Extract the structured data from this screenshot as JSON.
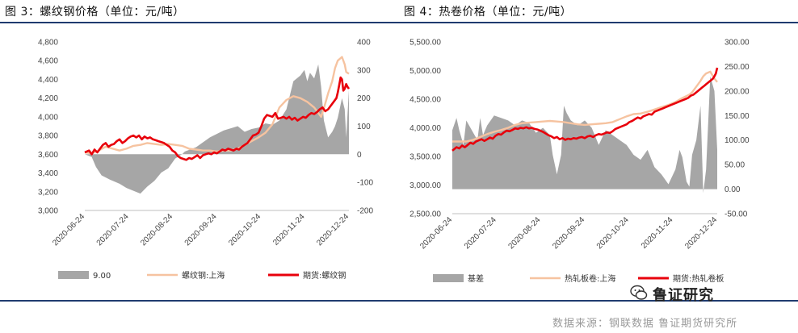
{
  "titles": {
    "left": "图 3：螺纹钢价格（单位：元/吨）",
    "right": "图 4：热卷价格（单位：元/吨）"
  },
  "source": "数据来源：钢联数据 鲁证期货研究所",
  "logo_text": "鲁证研究",
  "colors": {
    "basis": "#a6a6a6",
    "spot": "#f6c3a0",
    "futures": "#e8000b",
    "rule": "#1f3b6f"
  },
  "chart_data": [
    {
      "type": "line",
      "title": "图 3：螺纹钢价格（单位：元/吨）",
      "x_ticks": [
        "2020-06-24",
        "2020-07-24",
        "2020-08-24",
        "2020-09-24",
        "2020-10-24",
        "2020-11-24",
        "2020-12-24"
      ],
      "y_left_ticks": [
        "4,800",
        "4,600",
        "4,400",
        "4,200",
        "4,000",
        "3,800",
        "3,600",
        "3,400",
        "3,200",
        "3,000"
      ],
      "y_right_ticks": [
        "400",
        "300",
        "200",
        "100",
        "0",
        "-100",
        "-200"
      ],
      "ylim_left": [
        3000,
        4800
      ],
      "ylim_right": [
        -200,
        400
      ],
      "x_range_days": [
        0,
        190
      ],
      "series": [
        {
          "name": "9.00",
          "type": "area",
          "axis": "right",
          "x": [
            0,
            5,
            8,
            12,
            18,
            25,
            30,
            35,
            40,
            45,
            50,
            55,
            60,
            65,
            70,
            72,
            80,
            90,
            100,
            110,
            115,
            120,
            125,
            130,
            135,
            140,
            145,
            150,
            155,
            158,
            160,
            162,
            165,
            168,
            170,
            172,
            175,
            178,
            180,
            182,
            185,
            187,
            188,
            190
          ],
          "y": [
            0,
            -10,
            -45,
            -75,
            -90,
            -105,
            -120,
            -130,
            -140,
            -115,
            -95,
            -65,
            -50,
            -15,
            0,
            10,
            25,
            60,
            85,
            100,
            80,
            90,
            95,
            110,
            105,
            120,
            160,
            260,
            280,
            300,
            260,
            290,
            270,
            320,
            240,
            120,
            60,
            80,
            100,
            130,
            200,
            160,
            60,
            230
          ]
        },
        {
          "name": "螺纹钢:上海",
          "type": "line",
          "axis": "left",
          "x": [
            0,
            5,
            10,
            15,
            20,
            25,
            30,
            35,
            40,
            45,
            50,
            55,
            60,
            65,
            70,
            75,
            80,
            85,
            90,
            95,
            100,
            105,
            110,
            115,
            120,
            125,
            130,
            135,
            140,
            145,
            150,
            155,
            160,
            165,
            170,
            172,
            175,
            178,
            180,
            182,
            185,
            187,
            188,
            190
          ],
          "y": [
            3620,
            3610,
            3640,
            3680,
            3660,
            3640,
            3660,
            3690,
            3700,
            3720,
            3710,
            3700,
            3710,
            3700,
            3690,
            3660,
            3650,
            3640,
            3640,
            3630,
            3640,
            3640,
            3660,
            3700,
            3740,
            3780,
            3830,
            3920,
            4100,
            4180,
            4220,
            4200,
            4160,
            4100,
            4000,
            4090,
            4250,
            4380,
            4520,
            4600,
            4640,
            4560,
            4480,
            4460
          ]
        },
        {
          "name": "期货:螺纹钢",
          "type": "line",
          "axis": "left",
          "x": [
            0,
            3,
            5,
            7,
            9,
            11,
            13,
            15,
            17,
            19,
            21,
            23,
            25,
            27,
            29,
            31,
            33,
            35,
            37,
            39,
            41,
            43,
            45,
            47,
            49,
            51,
            53,
            55,
            57,
            59,
            61,
            63,
            65,
            67,
            69,
            71,
            73,
            75,
            77,
            79,
            81,
            83,
            85,
            87,
            89,
            91,
            93,
            95,
            97,
            99,
            101,
            103,
            105,
            107,
            109,
            111,
            113,
            115,
            117,
            119,
            121,
            123,
            125,
            127,
            129,
            131,
            133,
            135,
            137,
            139,
            141,
            143,
            145,
            147,
            149,
            151,
            153,
            155,
            157,
            159,
            161,
            163,
            165,
            167,
            169,
            171,
            173,
            175,
            177,
            179,
            181,
            182,
            183,
            184,
            185,
            186,
            187,
            188,
            189,
            190
          ],
          "y": [
            3620,
            3640,
            3600,
            3650,
            3620,
            3660,
            3700,
            3720,
            3680,
            3700,
            3710,
            3740,
            3760,
            3720,
            3740,
            3770,
            3790,
            3800,
            3780,
            3800,
            3760,
            3790,
            3770,
            3780,
            3760,
            3750,
            3740,
            3730,
            3720,
            3700,
            3680,
            3640,
            3620,
            3580,
            3560,
            3550,
            3540,
            3560,
            3550,
            3570,
            3590,
            3560,
            3590,
            3600,
            3610,
            3600,
            3620,
            3610,
            3630,
            3650,
            3640,
            3660,
            3650,
            3640,
            3660,
            3650,
            3680,
            3700,
            3720,
            3760,
            3800,
            3810,
            3830,
            3900,
            3980,
            4020,
            4010,
            4000,
            4040,
            3980,
            3990,
            4000,
            3980,
            4000,
            3970,
            3990,
            3960,
            3980,
            4000,
            3990,
            4020,
            4040,
            4030,
            4050,
            4080,
            4100,
            4060,
            4080,
            4120,
            4160,
            4200,
            4260,
            4340,
            4420,
            4400,
            4280,
            4300,
            4350,
            4320,
            4300
          ]
        }
      ],
      "legend": [
        "9.00",
        "螺纹钢:上海",
        "期货:螺纹钢"
      ]
    },
    {
      "type": "line",
      "title": "图 4：热卷价格（单位：元/吨）",
      "x_ticks": [
        "2020-06-24",
        "2020-07-24",
        "2020-08-24",
        "2020-09-24",
        "2020-10-24",
        "2020-11-24",
        "2020-12-24"
      ],
      "y_left_ticks": [
        "5,500.00",
        "5,000.00",
        "4,500.00",
        "4,000.00",
        "3,500.00",
        "3,000.00",
        "2,500.00"
      ],
      "y_right_ticks": [
        "300.00",
        "250.00",
        "200.00",
        "150.00",
        "100.00",
        "50.00",
        "0.00",
        "-50.00"
      ],
      "ylim_left": [
        2500,
        5500
      ],
      "ylim_right": [
        -50,
        300
      ],
      "x_range_days": [
        0,
        190
      ],
      "series": [
        {
          "name": "基差",
          "type": "area",
          "axis": "right",
          "x": [
            0,
            3,
            5,
            8,
            10,
            15,
            18,
            20,
            22,
            25,
            30,
            35,
            40,
            45,
            50,
            55,
            60,
            65,
            70,
            72,
            75,
            78,
            80,
            82,
            85,
            90,
            95,
            100,
            105,
            110,
            115,
            120,
            125,
            130,
            135,
            140,
            145,
            150,
            155,
            160,
            163,
            165,
            168,
            170,
            172,
            175,
            178,
            180,
            182,
            185,
            188,
            190
          ],
          "y": [
            120,
            145,
            120,
            90,
            140,
            115,
            100,
            145,
            110,
            130,
            150,
            145,
            140,
            130,
            140,
            135,
            115,
            125,
            110,
            70,
            30,
            70,
            170,
            155,
            140,
            130,
            140,
            125,
            90,
            120,
            110,
            100,
            90,
            70,
            60,
            80,
            45,
            30,
            10,
            40,
            80,
            65,
            15,
            5,
            70,
            100,
            170,
            -8,
            40,
            230,
            200,
            80
          ]
        },
        {
          "name": "热轧板卷:上海",
          "type": "line",
          "axis": "left",
          "x": [
            0,
            5,
            10,
            15,
            20,
            25,
            30,
            35,
            40,
            45,
            50,
            55,
            60,
            65,
            70,
            75,
            80,
            85,
            90,
            95,
            100,
            105,
            110,
            115,
            120,
            125,
            130,
            135,
            140,
            145,
            150,
            155,
            160,
            165,
            170,
            172,
            175,
            178,
            180,
            182,
            185,
            187,
            188,
            190
          ],
          "y": [
            3760,
            3760,
            3760,
            3790,
            3840,
            3890,
            3930,
            3960,
            4000,
            4050,
            4080,
            4090,
            4100,
            4110,
            4120,
            4110,
            4100,
            4080,
            4060,
            4050,
            4060,
            4070,
            4080,
            4100,
            4150,
            4200,
            4240,
            4250,
            4280,
            4320,
            4360,
            4400,
            4450,
            4520,
            4580,
            4620,
            4720,
            4820,
            4900,
            4950,
            4980,
            4900,
            4860,
            4800
          ]
        },
        {
          "name": "期货:热轧卷板",
          "type": "line",
          "axis": "left",
          "x": [
            0,
            3,
            5,
            7,
            9,
            11,
            13,
            15,
            17,
            19,
            21,
            23,
            25,
            27,
            29,
            31,
            33,
            35,
            37,
            39,
            41,
            43,
            45,
            47,
            49,
            51,
            53,
            55,
            57,
            59,
            61,
            63,
            65,
            67,
            69,
            71,
            73,
            75,
            77,
            79,
            81,
            83,
            85,
            87,
            89,
            91,
            93,
            95,
            97,
            99,
            101,
            103,
            105,
            107,
            109,
            111,
            113,
            115,
            117,
            119,
            121,
            123,
            125,
            127,
            129,
            131,
            133,
            135,
            137,
            139,
            141,
            143,
            145,
            147,
            149,
            151,
            153,
            155,
            157,
            159,
            161,
            163,
            165,
            167,
            169,
            171,
            173,
            175,
            177,
            179,
            181,
            182,
            183,
            184,
            185,
            186,
            187,
            188,
            189,
            190
          ],
          "y": [
            3600,
            3660,
            3640,
            3690,
            3660,
            3700,
            3740,
            3720,
            3760,
            3780,
            3800,
            3770,
            3800,
            3830,
            3810,
            3860,
            3890,
            3880,
            3920,
            3950,
            3940,
            3960,
            3990,
            3980,
            4000,
            3990,
            4010,
            3990,
            4000,
            3980,
            3970,
            3950,
            3930,
            3900,
            3870,
            3850,
            3820,
            3840,
            3800,
            3820,
            3790,
            3810,
            3800,
            3820,
            3810,
            3830,
            3840,
            3820,
            3850,
            3860,
            3840,
            3870,
            3890,
            3880,
            3900,
            3920,
            3910,
            3940,
            3980,
            4000,
            4020,
            4040,
            4060,
            4100,
            4120,
            4150,
            4180,
            4160,
            4200,
            4220,
            4240,
            4230,
            4280,
            4300,
            4320,
            4340,
            4360,
            4380,
            4400,
            4420,
            4440,
            4460,
            4480,
            4500,
            4520,
            4560,
            4580,
            4620,
            4660,
            4700,
            4740,
            4760,
            4780,
            4800,
            4820,
            4840,
            4860,
            4900,
            4950,
            5050
          ]
        }
      ],
      "legend": [
        "基差",
        "热轧板卷:上海",
        "期货:热轧卷板"
      ]
    }
  ]
}
